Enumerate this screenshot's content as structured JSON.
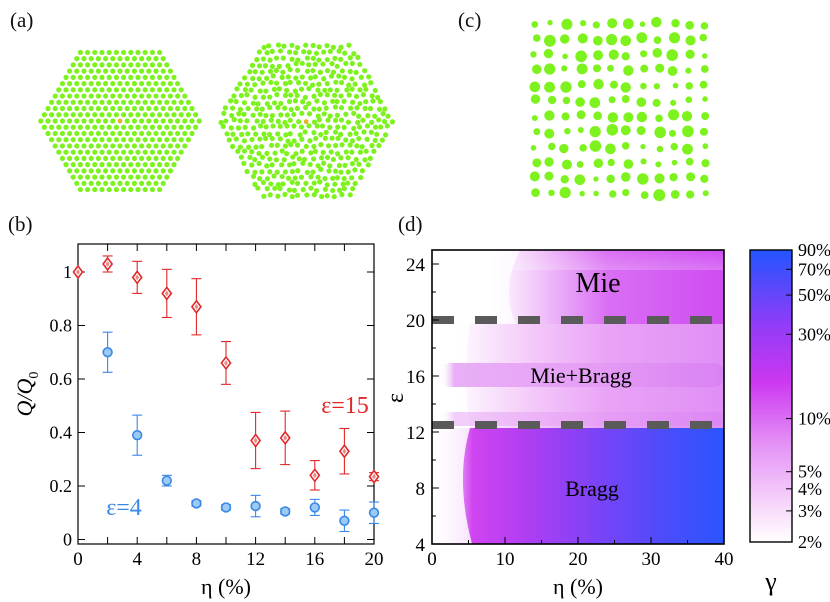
{
  "panel_labels": {
    "a": "(a)",
    "b": "(b)",
    "c": "(c)",
    "d": "(d)"
  },
  "chart_data": [
    {
      "type": "scatter",
      "panel": "(b)",
      "xlabel": "η (%)",
      "ylabel_main": "Q/Q",
      "ylabel_sub": "0",
      "xlim": [
        0,
        20
      ],
      "ylim": [
        0,
        1.1
      ],
      "x_ticks": [
        0,
        2,
        4,
        6,
        8,
        10,
        12,
        14,
        16,
        18,
        20
      ],
      "x_tick_labels": [
        "0",
        "4",
        "8",
        "12",
        "16",
        "20"
      ],
      "y_ticks": [
        0,
        0.2,
        0.4,
        0.6,
        0.8,
        1.0
      ],
      "y_tick_labels": [
        "0",
        "0.2",
        "0.4",
        "0.6",
        "0.8",
        "1"
      ],
      "series": [
        {
          "name": "ε=15",
          "color": "#e02828",
          "marker": "diamond",
          "x": [
            0,
            2,
            4,
            6,
            8,
            10,
            12,
            14,
            16,
            18,
            20
          ],
          "y": [
            1.0,
            1.03,
            0.98,
            0.92,
            0.87,
            0.66,
            0.37,
            0.38,
            0.24,
            0.33,
            0.235
          ],
          "err": [
            0.0,
            0.03,
            0.06,
            0.09,
            0.105,
            0.08,
            0.105,
            0.1,
            0.055,
            0.085,
            0.015
          ]
        },
        {
          "name": "ε=4",
          "color": "#3a88e6",
          "marker": "circle",
          "x": [
            2,
            4,
            6,
            8,
            10,
            12,
            14,
            16,
            18,
            20
          ],
          "y": [
            0.7,
            0.39,
            0.22,
            0.135,
            0.12,
            0.125,
            0.105,
            0.12,
            0.07,
            0.1
          ],
          "err": [
            0.075,
            0.075,
            0.02,
            0.01,
            0.01,
            0.04,
            0.01,
            0.03,
            0.04,
            0.04
          ]
        }
      ]
    },
    {
      "type": "heatmap",
      "panel": "(d)",
      "xlabel": "η (%)",
      "ylabel": "ε",
      "xlim": [
        0,
        40
      ],
      "ylim": [
        4,
        25
      ],
      "x_tick_labels": [
        "0",
        "10",
        "20",
        "30",
        "40"
      ],
      "y_tick_labels": [
        "4",
        "8",
        "12",
        "16",
        "20",
        "24"
      ],
      "dashed_boundaries_eps": [
        20,
        12.5
      ],
      "regions": [
        "Mie",
        "Mie+Bragg",
        "Bragg"
      ],
      "colorbar_label": "γ",
      "colorbar_ticks": [
        "90%",
        "70%",
        "50%",
        "30%",
        "10%",
        "5%",
        "4%",
        "3%",
        "2%"
      ],
      "colorbar_tick_values": [
        90,
        70,
        50,
        30,
        10,
        5,
        4,
        3,
        2
      ],
      "colorbar_range": [
        2,
        90
      ],
      "colors": {
        "low": "#ffffff",
        "mid": "#d33cf2",
        "high": "#1f57ff"
      }
    }
  ]
}
